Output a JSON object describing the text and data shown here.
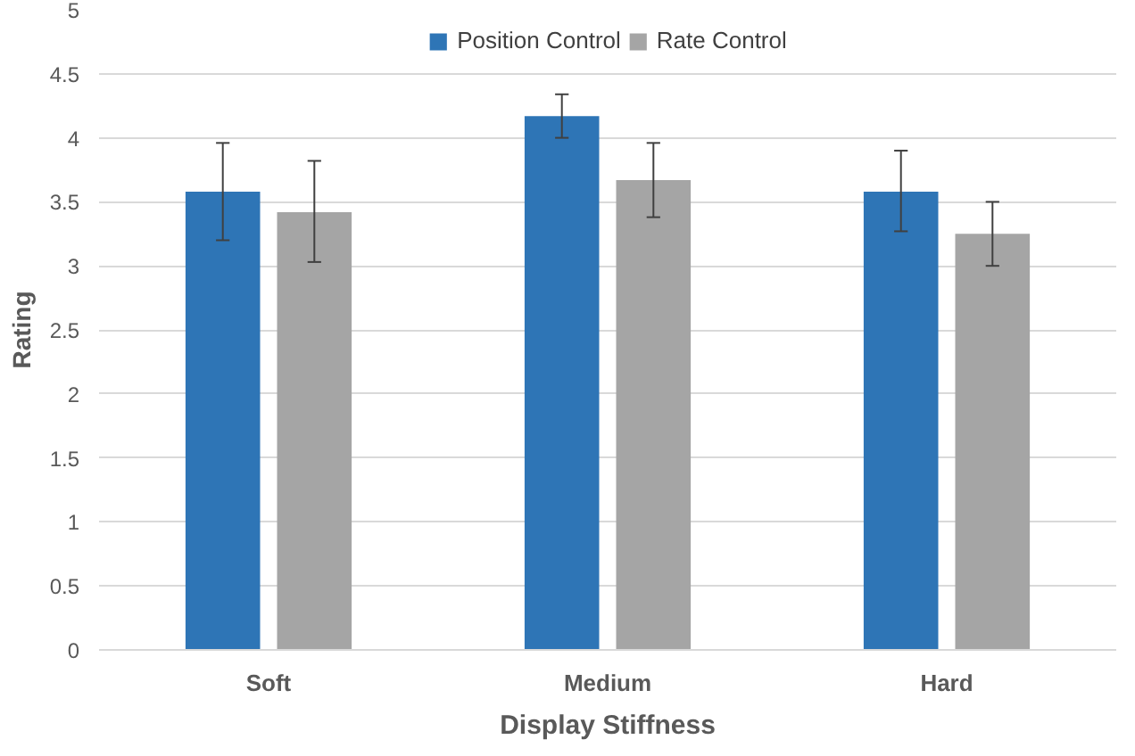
{
  "chart_data": {
    "type": "bar",
    "xlabel": "Display Stiffness",
    "ylabel": "Rating",
    "categories": [
      "Soft",
      "Medium",
      "Hard"
    ],
    "series": [
      {
        "name": "Position Control",
        "color": "#2e75b6",
        "values": [
          3.58,
          4.17,
          3.58
        ],
        "errors": [
          [
            3.2,
            3.96
          ],
          [
            4.0,
            4.34
          ],
          [
            3.27,
            3.9
          ]
        ]
      },
      {
        "name": "Rate Control",
        "color": "#a5a5a5",
        "values": [
          3.42,
          3.67,
          3.25
        ],
        "errors": [
          [
            3.03,
            3.82
          ],
          [
            3.38,
            3.96
          ],
          [
            3.0,
            3.5
          ]
        ]
      }
    ],
    "ylim": [
      0,
      5
    ],
    "yticks": [
      0,
      0.5,
      1,
      1.5,
      2,
      2.5,
      3,
      3.5,
      4,
      4.5,
      5
    ],
    "grid": "y",
    "legend": "top"
  }
}
